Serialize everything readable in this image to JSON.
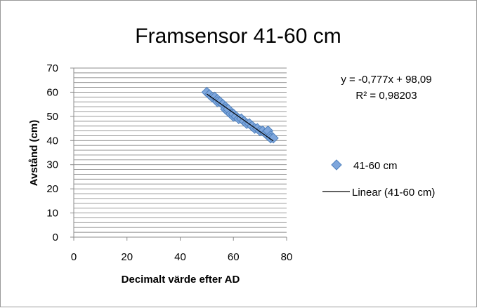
{
  "chart_data": {
    "type": "scatter",
    "title": "Framsensor 41-60 cm",
    "xlabel": "Decimalt värde efter AD",
    "ylabel": "Avstånd (cm)",
    "xlim": [
      0,
      80
    ],
    "ylim": [
      0,
      70
    ],
    "x_ticks": [
      "0",
      "20",
      "40",
      "60",
      "80"
    ],
    "y_ticks": [
      "0",
      "10",
      "20",
      "30",
      "40",
      "50",
      "60",
      "70"
    ],
    "grid": "horizontal-minor",
    "legend_position": "right",
    "colors": {
      "marker": "#4f81bd",
      "marker_fill": "#7ea6dc",
      "trendline": "#000000",
      "grid": "#8c8c8c"
    },
    "series": [
      {
        "name": "41-60 cm",
        "marker": "diamond-icon",
        "points": [
          [
            50,
            60
          ],
          [
            51,
            59
          ],
          [
            52,
            58
          ],
          [
            53,
            58
          ],
          [
            54,
            57
          ],
          [
            54,
            56
          ],
          [
            55,
            56
          ],
          [
            56,
            55
          ],
          [
            57,
            54
          ],
          [
            57,
            53
          ],
          [
            58,
            52
          ],
          [
            58,
            53
          ],
          [
            59,
            51
          ],
          [
            60,
            50
          ],
          [
            60,
            51
          ],
          [
            61,
            50
          ],
          [
            62,
            49
          ],
          [
            63,
            49
          ],
          [
            64,
            48
          ],
          [
            65,
            47
          ],
          [
            66,
            47
          ],
          [
            67,
            46
          ],
          [
            68,
            45
          ],
          [
            69,
            45
          ],
          [
            70,
            44
          ],
          [
            71,
            44
          ],
          [
            72,
            43
          ],
          [
            73,
            42
          ],
          [
            73,
            44
          ],
          [
            74,
            42
          ],
          [
            74,
            41
          ],
          [
            75,
            41
          ]
        ]
      }
    ],
    "trendline": {
      "name": "Linear (41-60 cm)",
      "slope": -0.777,
      "intercept": 98.09,
      "x_range": [
        50,
        75
      ],
      "equation": "y = -0,777x + 98,09",
      "r_squared": "R² = 0,98203"
    }
  }
}
